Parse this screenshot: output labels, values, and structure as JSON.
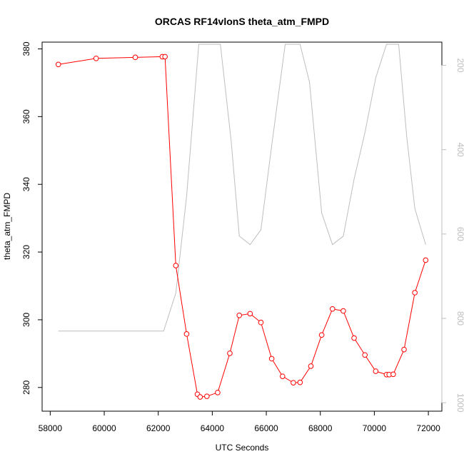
{
  "chart_data": {
    "type": "line",
    "title": "ORCAS RF14vlonS theta_atm_FMPD",
    "xlabel": "UTC Seconds",
    "ylabel": "theta_atm_FMPD",
    "xlim": [
      57700,
      72500
    ],
    "ylim": [
      273,
      382
    ],
    "x_ticks": [
      58000,
      60000,
      62000,
      64000,
      66000,
      68000,
      70000,
      72000
    ],
    "y_ticks": [
      280,
      300,
      320,
      340,
      360,
      380
    ],
    "y2_lim": [
      1020,
      145
    ],
    "y2_ticks": [
      200,
      400,
      600,
      800,
      1000
    ],
    "grid": false,
    "series": [
      {
        "color": "#ff0000",
        "axis": "left",
        "marker": "open-circle",
        "x": [
          58300,
          59700,
          61150,
          62150,
          62250,
          62650,
          63050,
          63450,
          63550,
          63800,
          64200,
          64650,
          65000,
          65400,
          65800,
          66200,
          66600,
          67000,
          67250,
          67650,
          68050,
          68450,
          68850,
          69250,
          69650,
          70050,
          70450,
          70550,
          70700,
          71100,
          71500,
          71900
        ],
        "y": [
          375.4,
          377.2,
          377.5,
          377.7,
          377.7,
          316.0,
          295.8,
          278.0,
          277.2,
          277.4,
          278.5,
          290.1,
          301.3,
          301.8,
          299.2,
          288.5,
          283.3,
          281.4,
          281.5,
          286.3,
          295.5,
          303.2,
          302.6,
          294.6,
          289.6,
          284.8,
          283.8,
          283.8,
          283.9,
          291.2,
          308.0,
          317.6
        ]
      },
      {
        "color": "#bebebe",
        "axis": "right",
        "marker": "none",
        "x": [
          58300,
          62200,
          62650,
          63050,
          63500,
          64300,
          64700,
          65000,
          65400,
          65800,
          66200,
          66700,
          67250,
          67600,
          68050,
          68450,
          68850,
          69250,
          69650,
          70050,
          70450,
          70900,
          71200,
          71500,
          71900
        ],
        "y": [
          830,
          830,
          740,
          510,
          150,
          150,
          380,
          605,
          625,
          590,
          390,
          150,
          150,
          240,
          550,
          625,
          605,
          470,
          360,
          230,
          150,
          150,
          370,
          540,
          625
        ]
      }
    ]
  }
}
